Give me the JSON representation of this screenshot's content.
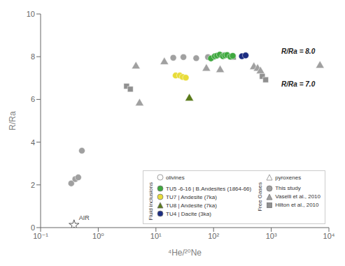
{
  "chart_data": {
    "type": "scatter",
    "xlabel": "⁴He/²⁰Ne",
    "ylabel": "R/Ra",
    "log": "x",
    "xlim": [
      0.1,
      10000
    ],
    "ylim": [
      0,
      10
    ],
    "xticks": [
      {
        "value": 0.1,
        "label": "10⁻¹"
      },
      {
        "value": 1,
        "label": "10⁰"
      },
      {
        "value": 10,
        "label": "10¹"
      },
      {
        "value": 100,
        "label": "10²"
      },
      {
        "value": 1000,
        "label": "10³"
      },
      {
        "value": 10000,
        "label": "10⁴"
      }
    ],
    "yticks": [
      0,
      2,
      4,
      6,
      8,
      10
    ],
    "grid": false,
    "legend": "lower right",
    "series": [
      {
        "name": "This study",
        "color": "#a0a0a0",
        "marker": "circle",
        "x": [
          0.34,
          0.4,
          0.45,
          0.52,
          20,
          30,
          50,
          80,
          100
        ],
        "values": [
          2.07,
          2.27,
          2.35,
          3.6,
          7.95,
          7.98,
          7.93,
          7.98,
          7.98
        ]
      },
      {
        "name": "Vaselli et al., 2010",
        "color": "#a0a0a0",
        "marker": "triangle",
        "x": [
          4.5,
          5.2,
          14,
          75,
          130,
          500,
          580,
          650,
          7000
        ],
        "values": [
          7.55,
          5.82,
          7.75,
          7.44,
          7.38,
          7.52,
          7.44,
          7.32,
          7.58
        ]
      },
      {
        "name": "Hilton et al., 2010",
        "color": "#909090",
        "marker": "square",
        "x": [
          3.1,
          3.6,
          140,
          220,
          700,
          800
        ],
        "values": [
          6.62,
          6.48,
          8.08,
          7.98,
          7.08,
          6.92
        ]
      },
      {
        "name": "TU5 -6-16 | B.Andesites (1864-66)",
        "color": "#3fa83f",
        "marker": "circle",
        "x": [
          90,
          105,
          115,
          128,
          145,
          158,
          172,
          195,
          215
        ],
        "values": [
          7.92,
          8.02,
          8.05,
          8.1,
          8.02,
          8.06,
          8.08,
          8.0,
          8.04
        ]
      },
      {
        "name": "TU7 | Andesite (7ka)",
        "color": "#e8dc3a",
        "marker": "circle",
        "x": [
          22,
          26,
          29,
          33
        ],
        "values": [
          7.12,
          7.12,
          7.05,
          7.02
        ]
      },
      {
        "name": "TU8 | Andesite (7ka)",
        "color": "#5a7a1a",
        "marker": "triangle",
        "x": [
          38
        ],
        "values": [
          6.05
        ]
      },
      {
        "name": "TU4 | Dacite (3ka)",
        "color": "#1c2d82",
        "marker": "circle",
        "x": [
          310,
          360
        ],
        "values": [
          8.02,
          8.06
        ]
      }
    ],
    "annotations": [
      {
        "text": "AIR",
        "x": 0.38,
        "y": 0.12,
        "marker": "star"
      },
      {
        "text": "R/Ra = 8.0",
        "x": 1500,
        "y": 8.25
      },
      {
        "text": "R/Ra = 7.0",
        "x": 1500,
        "y": 6.72
      },
      {
        "text": "olivines",
        "marker": "circle"
      },
      {
        "text": "pyroxenes",
        "marker": "triangle"
      },
      {
        "text": "Fluid inclusions"
      },
      {
        "text": "Free Gases"
      }
    ]
  }
}
